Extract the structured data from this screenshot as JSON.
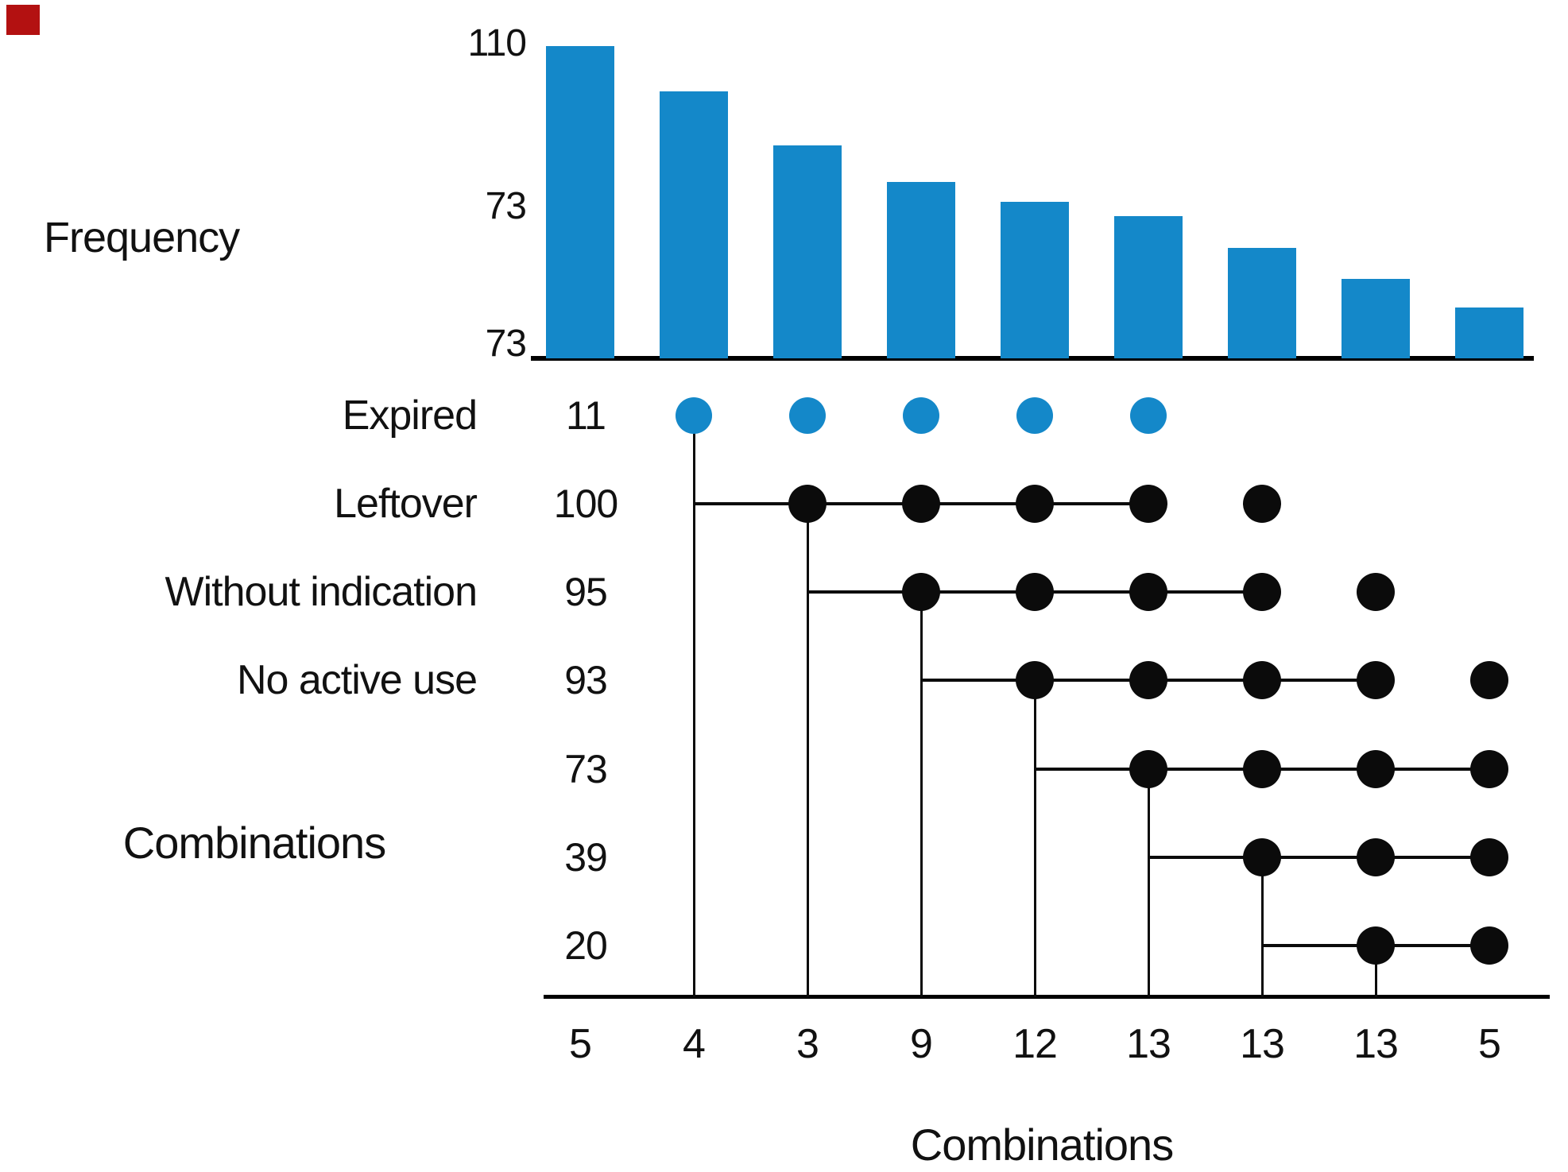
{
  "marker": {
    "color": "#b31111"
  },
  "chart_data": {
    "type": "bar",
    "title": "",
    "ylabel": "Frequency",
    "xlabel": "Combinations",
    "y_tick_labels": [
      "110",
      "73",
      "73"
    ],
    "categories": [
      "5",
      "4",
      "3",
      "9",
      "12",
      "13",
      "13",
      "13",
      "5"
    ],
    "values": [
      110,
      94,
      75,
      62,
      55,
      50,
      39,
      28,
      18
    ],
    "ylim": [
      0,
      110
    ],
    "grid": false,
    "legend": null,
    "bar_color": "#1488c9",
    "matrix": {
      "group_label": "Combinations",
      "dot_color_black": "#0b0b0b",
      "dot_color_blue": "#1488c9",
      "rows": [
        {
          "label": "Expired",
          "value": "11",
          "blue": true,
          "dot_cols": [
            2,
            3,
            4,
            5,
            6
          ],
          "connect_cols": null,
          "drop_col": 2
        },
        {
          "label": "Leftover",
          "value": "100",
          "blue": false,
          "dot_cols": [
            3,
            4,
            5,
            6,
            7
          ],
          "connect_cols": [
            2,
            6
          ],
          "drop_col": 3
        },
        {
          "label": "Without indication",
          "value": "95",
          "blue": false,
          "dot_cols": [
            4,
            5,
            6,
            7,
            8
          ],
          "connect_cols": [
            3,
            7
          ],
          "drop_col": 4
        },
        {
          "label": "No active use",
          "value": "93",
          "blue": false,
          "dot_cols": [
            5,
            6,
            7,
            8,
            9
          ],
          "connect_cols": [
            4,
            8
          ],
          "drop_col": 5
        },
        {
          "label": "",
          "value": "73",
          "blue": false,
          "dot_cols": [
            6,
            7,
            8,
            9
          ],
          "connect_cols": [
            5,
            9
          ],
          "drop_col": 6
        },
        {
          "label": "",
          "value": "39",
          "blue": false,
          "dot_cols": [
            7,
            8,
            9
          ],
          "connect_cols": [
            6,
            9
          ],
          "drop_col": 7
        },
        {
          "label": "",
          "value": "20",
          "blue": false,
          "dot_cols": [
            8,
            9
          ],
          "connect_cols": [
            7,
            9
          ],
          "drop_col": 8
        }
      ]
    }
  }
}
